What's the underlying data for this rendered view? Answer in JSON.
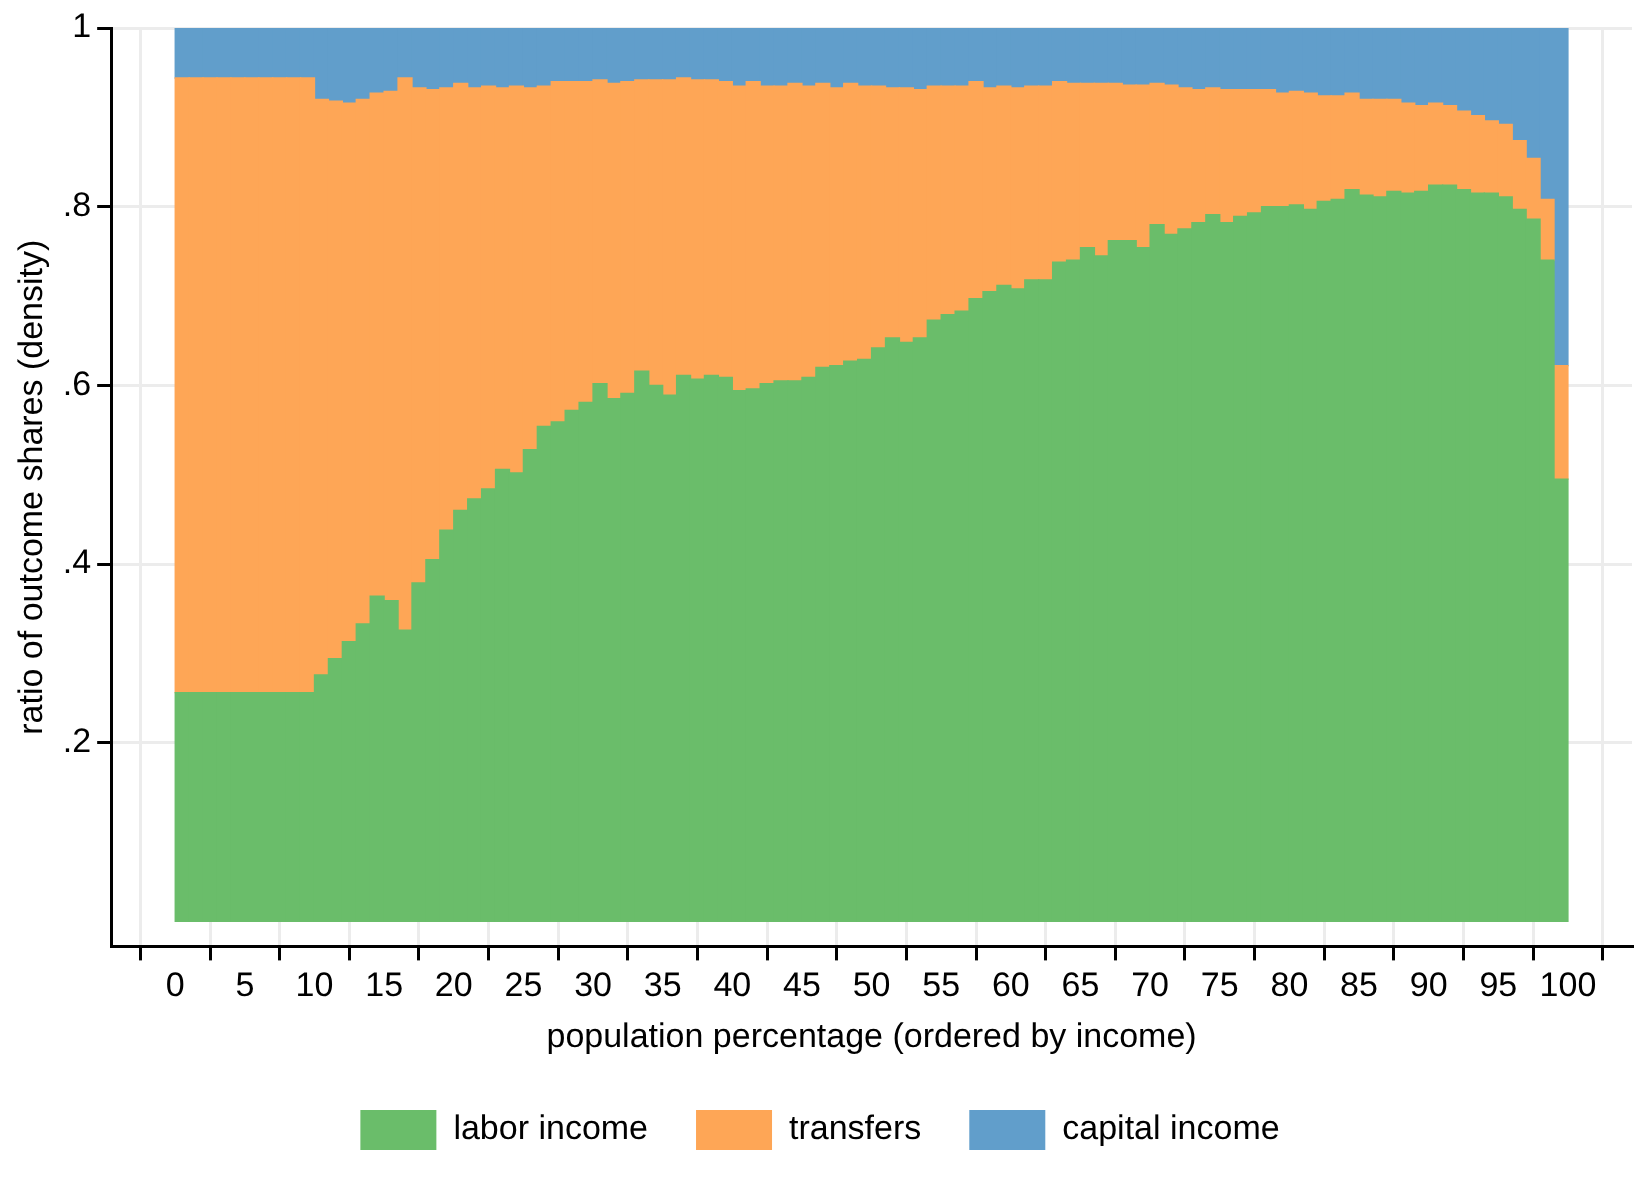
{
  "chart_data": {
    "type": "bar",
    "stacked": true,
    "xlabel": "population percentage (ordered by income)",
    "ylabel": "ratio of outcome shares (density)",
    "x": [
      0.5,
      1.5,
      2.5,
      3.5,
      4.5,
      5.5,
      6.5,
      7.5,
      8.5,
      9.5,
      10.5,
      11.5,
      12.5,
      13.5,
      14.5,
      15.5,
      16.5,
      17.5,
      18.5,
      19.5,
      20.5,
      21.5,
      22.5,
      23.5,
      24.5,
      25.5,
      26.5,
      27.5,
      28.5,
      29.5,
      30.5,
      31.5,
      32.5,
      33.5,
      34.5,
      35.5,
      36.5,
      37.5,
      38.5,
      39.5,
      40.5,
      41.5,
      42.5,
      43.5,
      44.5,
      45.5,
      46.5,
      47.5,
      48.5,
      49.5,
      50.5,
      51.5,
      52.5,
      53.5,
      54.5,
      55.5,
      56.5,
      57.5,
      58.5,
      59.5,
      60.5,
      61.5,
      62.5,
      63.5,
      64.5,
      65.5,
      66.5,
      67.5,
      68.5,
      69.5,
      70.5,
      71.5,
      72.5,
      73.5,
      74.5,
      75.5,
      76.5,
      77.5,
      78.5,
      79.5,
      80.5,
      81.5,
      82.5,
      83.5,
      84.5,
      85.5,
      86.5,
      87.5,
      88.5,
      89.5,
      90.5,
      91.5,
      92.5,
      93.5,
      94.5,
      95.5,
      96.5,
      97.5,
      98.5,
      99.5
    ],
    "series": [
      {
        "name": "labor income",
        "color": "#6abd6a",
        "values": [
          0.256,
          0.256,
          0.256,
          0.256,
          0.256,
          0.256,
          0.256,
          0.256,
          0.256,
          0.256,
          0.276,
          0.294,
          0.313,
          0.333,
          0.364,
          0.359,
          0.326,
          0.379,
          0.405,
          0.438,
          0.46,
          0.473,
          0.484,
          0.506,
          0.502,
          0.528,
          0.554,
          0.559,
          0.572,
          0.581,
          0.602,
          0.585,
          0.591,
          0.616,
          0.6,
          0.589,
          0.611,
          0.607,
          0.611,
          0.609,
          0.594,
          0.596,
          0.602,
          0.605,
          0.605,
          0.609,
          0.62,
          0.622,
          0.627,
          0.629,
          0.642,
          0.653,
          0.648,
          0.653,
          0.673,
          0.679,
          0.683,
          0.697,
          0.705,
          0.712,
          0.708,
          0.718,
          0.718,
          0.738,
          0.74,
          0.754,
          0.745,
          0.762,
          0.762,
          0.754,
          0.78,
          0.769,
          0.775,
          0.782,
          0.791,
          0.782,
          0.789,
          0.793,
          0.8,
          0.8,
          0.802,
          0.797,
          0.806,
          0.808,
          0.819,
          0.813,
          0.811,
          0.817,
          0.815,
          0.817,
          0.824,
          0.824,
          0.819,
          0.815,
          0.815,
          0.811,
          0.797,
          0.786,
          0.74,
          0.495
        ]
      },
      {
        "name": "transfers",
        "color": "#fea656",
        "values": [
          0.688,
          0.688,
          0.688,
          0.688,
          0.688,
          0.688,
          0.688,
          0.688,
          0.688,
          0.688,
          0.644,
          0.624,
          0.603,
          0.587,
          0.563,
          0.57,
          0.618,
          0.554,
          0.526,
          0.495,
          0.478,
          0.46,
          0.451,
          0.427,
          0.433,
          0.405,
          0.381,
          0.381,
          0.368,
          0.359,
          0.34,
          0.353,
          0.349,
          0.326,
          0.342,
          0.353,
          0.333,
          0.335,
          0.331,
          0.331,
          0.341,
          0.344,
          0.333,
          0.33,
          0.333,
          0.326,
          0.318,
          0.311,
          0.311,
          0.306,
          0.293,
          0.28,
          0.285,
          0.278,
          0.262,
          0.256,
          0.252,
          0.243,
          0.228,
          0.223,
          0.225,
          0.217,
          0.217,
          0.202,
          0.198,
          0.184,
          0.193,
          0.176,
          0.174,
          0.182,
          0.158,
          0.167,
          0.158,
          0.149,
          0.142,
          0.149,
          0.142,
          0.138,
          0.131,
          0.127,
          0.127,
          0.13,
          0.118,
          0.116,
          0.108,
          0.107,
          0.109,
          0.103,
          0.101,
          0.096,
          0.092,
          0.089,
          0.088,
          0.087,
          0.081,
          0.081,
          0.077,
          0.068,
          0.068,
          0.127
        ]
      },
      {
        "name": "capital income",
        "color": "#619ecb",
        "values": [
          0.056,
          0.056,
          0.056,
          0.056,
          0.056,
          0.056,
          0.056,
          0.056,
          0.056,
          0.056,
          0.08,
          0.082,
          0.084,
          0.08,
          0.073,
          0.071,
          0.056,
          0.067,
          0.069,
          0.067,
          0.062,
          0.067,
          0.065,
          0.067,
          0.065,
          0.067,
          0.065,
          0.06,
          0.06,
          0.06,
          0.058,
          0.062,
          0.06,
          0.058,
          0.058,
          0.058,
          0.056,
          0.058,
          0.058,
          0.06,
          0.065,
          0.06,
          0.065,
          0.065,
          0.062,
          0.065,
          0.062,
          0.067,
          0.062,
          0.065,
          0.065,
          0.067,
          0.067,
          0.069,
          0.065,
          0.065,
          0.065,
          0.06,
          0.067,
          0.065,
          0.067,
          0.065,
          0.065,
          0.06,
          0.062,
          0.062,
          0.062,
          0.062,
          0.064,
          0.064,
          0.062,
          0.064,
          0.067,
          0.069,
          0.067,
          0.069,
          0.069,
          0.069,
          0.069,
          0.073,
          0.071,
          0.073,
          0.076,
          0.076,
          0.073,
          0.08,
          0.08,
          0.08,
          0.084,
          0.087,
          0.084,
          0.087,
          0.093,
          0.098,
          0.104,
          0.108,
          0.126,
          0.146,
          0.192,
          0.378
        ]
      }
    ],
    "xlim": [
      -2,
      102
    ],
    "xticks": [
      0,
      5,
      10,
      15,
      20,
      25,
      30,
      35,
      40,
      45,
      50,
      55,
      60,
      65,
      70,
      75,
      80,
      85,
      90,
      95,
      100
    ],
    "ylim": [
      -0.028,
      1
    ],
    "yticks": [
      {
        "value": 0.2,
        "label": ".2"
      },
      {
        "value": 0.4,
        "label": ".4"
      },
      {
        "value": 0.6,
        "label": ".6"
      },
      {
        "value": 0.8,
        "label": ".8"
      },
      1
    ],
    "grid": true,
    "legend": "bottom"
  }
}
